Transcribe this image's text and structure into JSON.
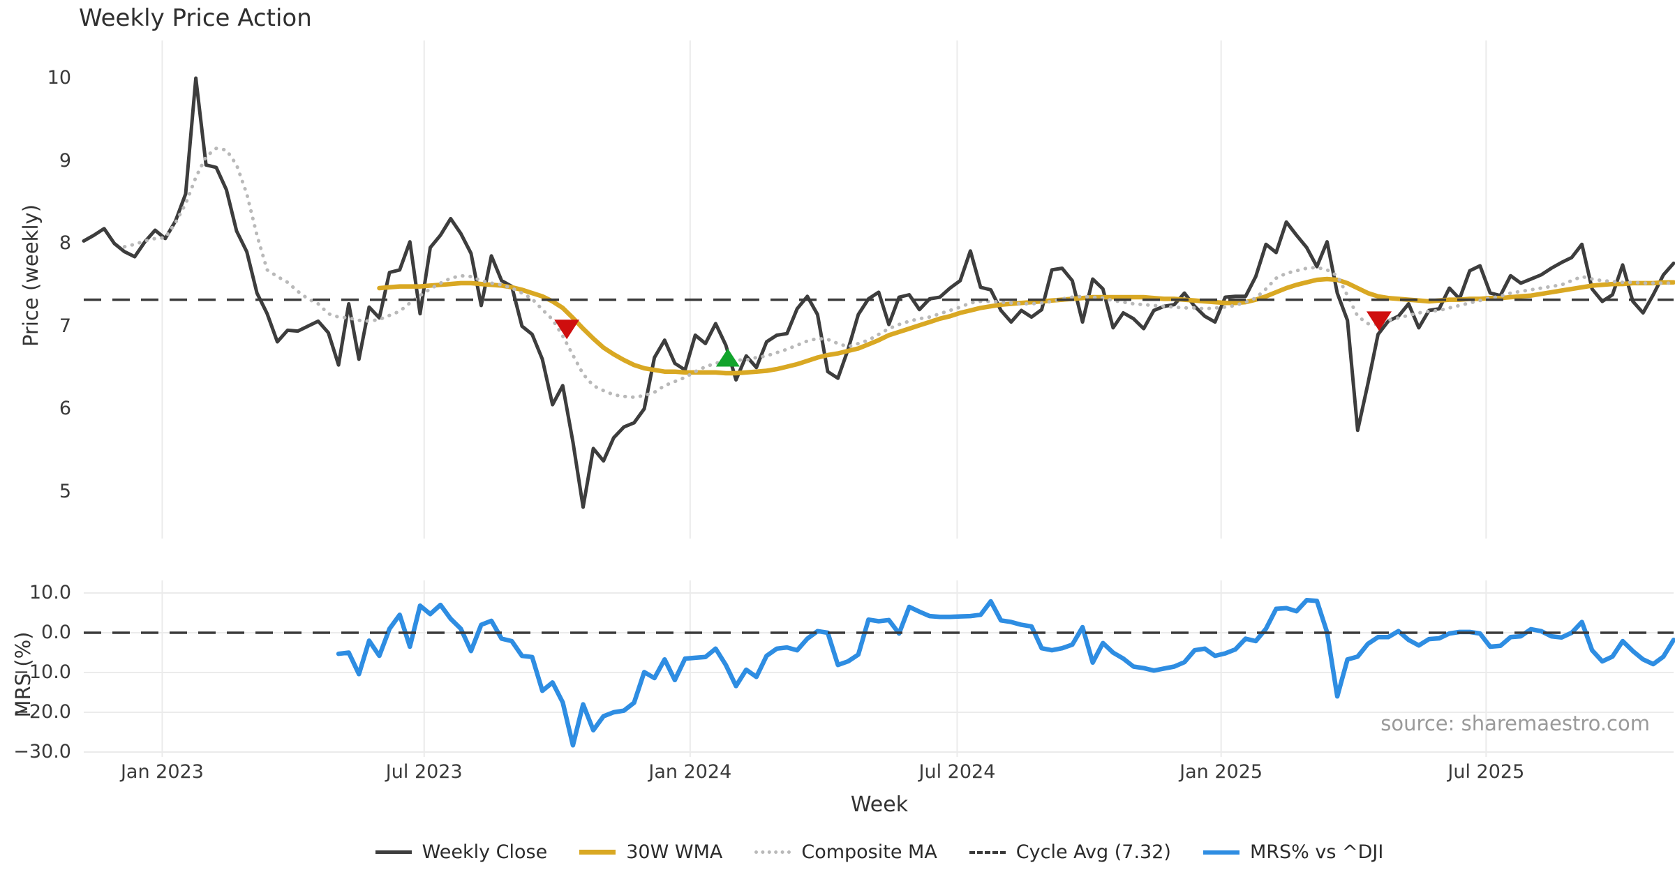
{
  "title": "Weekly Price Action",
  "source": "source: sharemaestro.com",
  "colors": {
    "price": "#3d3d3d",
    "wma": "#d9a823",
    "composite": "#b9b9b9",
    "cycle": "#3a3a3a",
    "mrs": "#2e8de2",
    "sell": "#cf0e0e",
    "buy": "#12a42c",
    "grid": "#ebebeb",
    "muted": "#9a9a9a"
  },
  "legend": [
    {
      "label": "Weekly Close",
      "style": "solid",
      "color": "#3d3d3d",
      "thickness": 5
    },
    {
      "label": "30W WMA",
      "style": "solid",
      "color": "#d9a823",
      "thickness": 7
    },
    {
      "label": "Composite MA",
      "style": "dotted",
      "color": "#b9b9b9",
      "thickness": 5
    },
    {
      "label": "Cycle Avg (7.32)",
      "style": "dashed",
      "color": "#3a3a3a",
      "thickness": 4
    },
    {
      "label": "MRS% vs ^DJI",
      "style": "solid",
      "color": "#2e8de2",
      "thickness": 6
    }
  ],
  "x_axis": {
    "label": "Week",
    "n_points": 157,
    "ticks": [
      {
        "label": "Jan 2023",
        "week": 7.7
      },
      {
        "label": "Jul 2023",
        "week": 33.4
      },
      {
        "label": "Jan 2024",
        "week": 59.5
      },
      {
        "label": "Jul 2024",
        "week": 85.7
      },
      {
        "label": "Jan 2025",
        "week": 111.6
      },
      {
        "label": "Jul 2025",
        "week": 137.6
      }
    ]
  },
  "chart_data": {
    "type": "line",
    "title": "Weekly Price Action",
    "panels": [
      {
        "id": "price",
        "ylabel": "Price (weekly)",
        "ylim": [
          4.4,
          10.5
        ],
        "yticks": [
          {
            "label": "10",
            "value": 10
          },
          {
            "label": "9",
            "value": 9
          },
          {
            "label": "8",
            "value": 8
          },
          {
            "label": "7",
            "value": 7
          },
          {
            "label": "6",
            "value": 6
          },
          {
            "label": "5",
            "value": 5
          }
        ],
        "reference_line": {
          "name": "Cycle Avg (7.32)",
          "value": 7.32,
          "style": "dashed"
        },
        "markers": [
          {
            "type": "sell",
            "shape": "triangle-down",
            "week": 47.4,
            "value": 6.96
          },
          {
            "type": "buy",
            "shape": "triangle-up",
            "week": 63.2,
            "value": 6.62
          },
          {
            "type": "sell",
            "shape": "triangle-down",
            "week": 127.1,
            "value": 7.06
          }
        ],
        "series": [
          {
            "name": "Weekly Close",
            "style": "solid",
            "color": "#3d3d3d",
            "values": [
              8.03,
              8.1,
              8.18,
              8.0,
              7.9,
              7.84,
              8.02,
              8.16,
              8.06,
              8.27,
              8.6,
              10.0,
              8.95,
              8.92,
              8.65,
              8.15,
              7.9,
              7.4,
              7.15,
              6.81,
              6.95,
              6.94,
              7.0,
              7.06,
              6.92,
              6.53,
              7.27,
              6.6,
              7.23,
              7.1,
              7.65,
              7.68,
              8.02,
              7.15,
              7.95,
              8.1,
              8.3,
              8.12,
              7.88,
              7.25,
              7.85,
              7.55,
              7.48,
              7.0,
              6.9,
              6.6,
              6.05,
              6.28,
              5.6,
              4.81,
              5.52,
              5.37,
              5.65,
              5.78,
              5.83,
              6.0,
              6.62,
              6.83,
              6.55,
              6.47,
              6.89,
              6.79,
              7.03,
              6.77,
              6.35,
              6.64,
              6.5,
              6.81,
              6.89,
              6.91,
              7.21,
              7.36,
              7.14,
              6.45,
              6.37,
              6.72,
              7.14,
              7.33,
              7.41,
              7.02,
              7.35,
              7.38,
              7.2,
              7.33,
              7.35,
              7.46,
              7.55,
              7.91,
              7.47,
              7.44,
              7.19,
              7.05,
              7.19,
              7.11,
              7.2,
              7.68,
              7.7,
              7.55,
              7.05,
              7.57,
              7.45,
              6.98,
              7.16,
              7.09,
              6.97,
              7.19,
              7.24,
              7.26,
              7.4,
              7.24,
              7.12,
              7.05,
              7.35,
              7.36,
              7.36,
              7.6,
              7.99,
              7.89,
              8.26,
              8.1,
              7.95,
              7.72,
              8.02,
              7.4,
              7.07,
              5.74,
              6.3,
              6.9,
              7.06,
              7.12,
              7.27,
              6.98,
              7.19,
              7.21,
              7.46,
              7.33,
              7.67,
              7.73,
              7.4,
              7.37,
              7.61,
              7.52,
              7.57,
              7.62,
              7.7,
              7.77,
              7.83,
              7.99,
              7.45,
              7.3,
              7.38,
              7.74,
              7.3,
              7.16,
              7.38,
              7.62,
              7.76
            ]
          },
          {
            "name": "30W WMA",
            "style": "solid",
            "color": "#d9a823",
            "values": [
              null,
              null,
              null,
              null,
              null,
              null,
              null,
              null,
              null,
              null,
              null,
              null,
              null,
              null,
              null,
              null,
              null,
              null,
              null,
              null,
              null,
              null,
              null,
              null,
              null,
              null,
              null,
              null,
              null,
              7.46,
              7.47,
              7.48,
              7.48,
              7.48,
              7.49,
              7.5,
              7.51,
              7.52,
              7.52,
              7.51,
              7.5,
              7.49,
              7.47,
              7.44,
              7.4,
              7.36,
              7.3,
              7.22,
              7.1,
              6.97,
              6.85,
              6.74,
              6.66,
              6.59,
              6.53,
              6.49,
              6.47,
              6.45,
              6.45,
              6.44,
              6.44,
              6.44,
              6.44,
              6.43,
              6.43,
              6.44,
              6.45,
              6.46,
              6.48,
              6.51,
              6.54,
              6.58,
              6.62,
              6.65,
              6.67,
              6.7,
              6.73,
              6.78,
              6.83,
              6.89,
              6.93,
              6.97,
              7.01,
              7.05,
              7.09,
              7.12,
              7.16,
              7.19,
              7.22,
              7.24,
              7.26,
              7.27,
              7.28,
              7.29,
              7.3,
              7.31,
              7.32,
              7.33,
              7.34,
              7.35,
              7.35,
              7.35,
              7.35,
              7.35,
              7.35,
              7.34,
              7.33,
              7.33,
              7.32,
              7.31,
              7.3,
              7.29,
              7.28,
              7.28,
              7.29,
              7.32,
              7.36,
              7.41,
              7.46,
              7.5,
              7.53,
              7.56,
              7.57,
              7.56,
              7.52,
              7.46,
              7.4,
              7.36,
              7.34,
              7.33,
              7.32,
              7.31,
              7.3,
              7.31,
              7.32,
              7.32,
              7.33,
              7.33,
              7.34,
              7.34,
              7.35,
              7.36,
              7.37,
              7.39,
              7.41,
              7.43,
              7.45,
              7.47,
              7.49,
              7.5,
              7.51,
              7.51,
              7.52,
              7.52,
              7.52,
              7.53,
              7.53
            ]
          },
          {
            "name": "Composite MA",
            "style": "dotted",
            "color": "#b9b9b9",
            "values": [
              null,
              null,
              null,
              null,
              7.96,
              7.99,
              8.03,
              8.06,
              8.07,
              8.25,
              8.48,
              8.8,
              9.05,
              9.15,
              9.13,
              8.95,
              8.6,
              8.1,
              7.68,
              7.6,
              7.53,
              7.42,
              7.33,
              7.27,
              7.15,
              7.11,
              7.1,
              7.07,
              7.06,
              7.08,
              7.13,
              7.18,
              7.28,
              7.37,
              7.45,
              7.52,
              7.58,
              7.61,
              7.6,
              7.55,
              7.52,
              7.5,
              7.46,
              7.4,
              7.33,
              7.2,
              7.08,
              6.88,
              6.65,
              6.42,
              6.28,
              6.22,
              6.17,
              6.15,
              6.14,
              6.16,
              6.2,
              6.28,
              6.33,
              6.38,
              6.45,
              6.51,
              6.55,
              6.58,
              6.59,
              6.59,
              6.62,
              6.64,
              6.68,
              6.72,
              6.77,
              6.82,
              6.85,
              6.84,
              6.79,
              6.75,
              6.79,
              6.83,
              6.9,
              6.97,
              7.02,
              7.06,
              7.09,
              7.11,
              7.15,
              7.19,
              7.23,
              7.28,
              7.3,
              7.3,
              7.29,
              7.28,
              7.27,
              7.27,
              7.28,
              7.3,
              7.33,
              7.35,
              7.36,
              7.35,
              7.34,
              7.31,
              7.29,
              7.27,
              7.26,
              7.25,
              7.24,
              7.23,
              7.22,
              7.22,
              7.21,
              7.22,
              7.23,
              7.25,
              7.29,
              7.34,
              7.45,
              7.58,
              7.64,
              7.67,
              7.7,
              7.71,
              7.68,
              7.61,
              7.37,
              7.12,
              7.03,
              7.02,
              7.07,
              7.1,
              7.13,
              7.16,
              7.18,
              7.19,
              7.22,
              7.25,
              7.28,
              7.31,
              7.34,
              7.36,
              7.4,
              7.42,
              7.44,
              7.46,
              7.48,
              7.5,
              7.55,
              7.6,
              7.57,
              7.55,
              7.54,
              7.53,
              7.53,
              7.52,
              7.52,
              7.52,
              7.52
            ]
          }
        ]
      },
      {
        "id": "mrs",
        "ylabel": "MRS (%)",
        "ylim": [
          -31,
          13
        ],
        "yticks": [
          {
            "label": "10.0",
            "value": 10
          },
          {
            "label": "0.0",
            "value": 0
          },
          {
            "label": "−10.0",
            "value": -10
          },
          {
            "label": "−20.0",
            "value": -20
          },
          {
            "label": "−30.0",
            "value": -30
          }
        ],
        "reference_line": {
          "name": "zero",
          "value": 0,
          "style": "dashed"
        },
        "series": [
          {
            "name": "MRS% vs ^DJI",
            "style": "solid",
            "color": "#2e8de2",
            "values": [
              null,
              null,
              null,
              null,
              null,
              null,
              null,
              null,
              null,
              null,
              null,
              null,
              null,
              null,
              null,
              null,
              null,
              null,
              null,
              null,
              null,
              null,
              null,
              null,
              null,
              -5.3,
              -5.0,
              -10.4,
              -2.0,
              -5.8,
              1.0,
              4.5,
              -3.5,
              6.8,
              4.7,
              7.0,
              3.5,
              1.0,
              -4.6,
              2.0,
              3.0,
              -1.5,
              -2.1,
              -5.8,
              -6.1,
              -14.6,
              -12.5,
              -17.5,
              -28.3,
              -18.0,
              -24.5,
              -21.0,
              -20.0,
              -19.6,
              -17.6,
              -9.9,
              -11.4,
              -6.7,
              -11.9,
              -6.5,
              -6.3,
              -6.1,
              -4.0,
              -8.1,
              -13.4,
              -9.3,
              -11.1,
              -5.8,
              -4.0,
              -3.7,
              -4.4,
              -1.5,
              0.4,
              0.0,
              -8.1,
              -7.2,
              -5.5,
              3.3,
              2.9,
              3.2,
              -0.2,
              6.5,
              5.3,
              4.2,
              4.0,
              4.0,
              4.1,
              4.2,
              4.5,
              7.9,
              3.1,
              2.7,
              2.0,
              1.6,
              -3.9,
              -4.4,
              -3.9,
              -3.0,
              1.4,
              -7.5,
              -2.6,
              -5.0,
              -6.5,
              -8.5,
              -8.9,
              -9.5,
              -9.0,
              -8.5,
              -7.4,
              -4.4,
              -4.0,
              -5.8,
              -5.2,
              -4.2,
              -1.5,
              -2.1,
              1.0,
              6.0,
              6.2,
              5.4,
              8.2,
              8.0,
              0.1,
              -16.0,
              -6.7,
              -6.0,
              -2.8,
              -1.1,
              -1.1,
              0.4,
              -1.8,
              -3.2,
              -1.6,
              -1.4,
              -0.2,
              0.2,
              0.2,
              -0.2,
              -3.5,
              -3.3,
              -1.1,
              -0.9,
              0.9,
              0.4,
              -0.9,
              -1.2,
              0.0,
              2.7,
              -4.4,
              -7.2,
              -6.0,
              -2.1,
              -4.6,
              -6.7,
              -7.9,
              -6.0,
              -1.8
            ]
          }
        ]
      }
    ]
  }
}
